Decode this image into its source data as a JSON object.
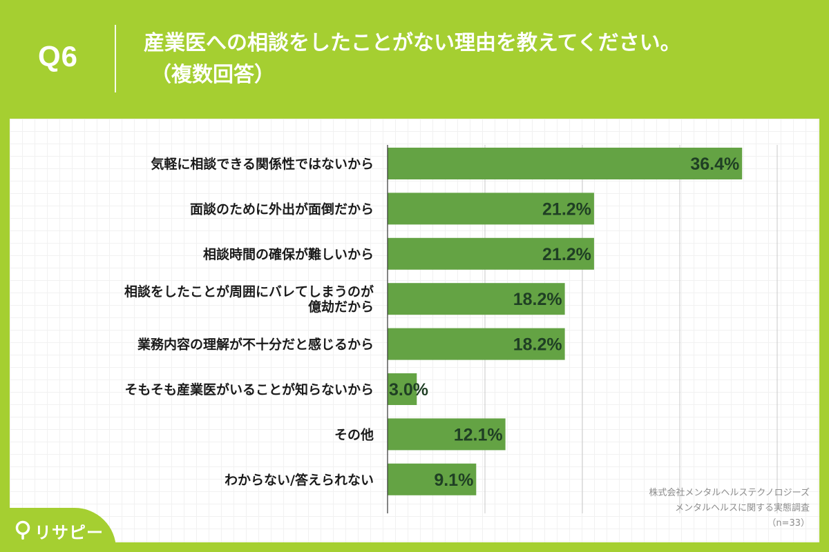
{
  "header": {
    "q_label": "Q6",
    "title_line1": "産業医への相談をしたことがない理由を教えてください。",
    "title_line2": "（複数回答）"
  },
  "chart_data": {
    "type": "bar",
    "orientation": "horizontal",
    "categories": [
      [
        "気軽に相談できる関係性ではないから"
      ],
      [
        "面談のために外出が面倒だから"
      ],
      [
        "相談時間の確保が難しいから"
      ],
      [
        "相談をしたことが周囲にバレてしまうのが",
        "億劫だから"
      ],
      [
        "業務内容の理解が不十分だと感じるから"
      ],
      [
        "そもそも産業医がいることが知らないから"
      ],
      [
        "その他"
      ],
      [
        "わからない/答えられない"
      ]
    ],
    "values": [
      36.4,
      21.2,
      21.2,
      18.2,
      18.2,
      3.0,
      12.1,
      9.1
    ],
    "value_labels": [
      "36.4%",
      "21.2%",
      "21.2%",
      "18.2%",
      "18.2%",
      "3.0%",
      "12.1%",
      "9.1%"
    ],
    "xlim": [
      0,
      40
    ],
    "grid": true,
    "bar_color": "#64a344",
    "value_label_color": "#1f3f24"
  },
  "credit": {
    "line1": "株式会社メンタルヘルステクノロジーズ",
    "line2": "メンタルヘルスに関する実態調査",
    "line3": "（n=33）"
  },
  "logo": {
    "text": "リサピー",
    "icon": "pin-icon"
  },
  "colors": {
    "background": "#a5cf31",
    "panel": "#ffffff"
  }
}
